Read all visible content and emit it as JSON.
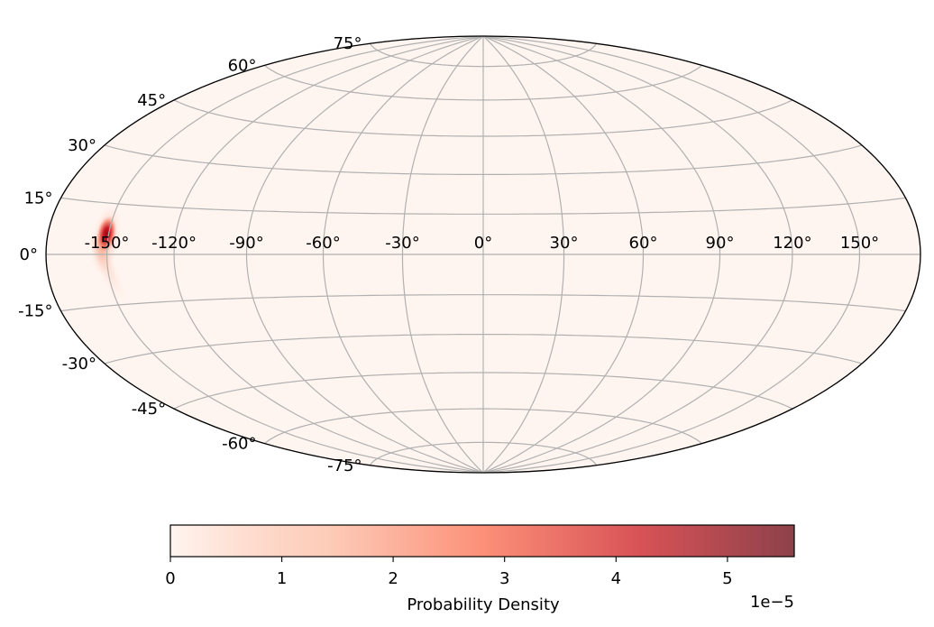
{
  "chart_data": {
    "type": "heatmap",
    "projection": "hammer",
    "title": "",
    "longitude_ticks": [
      "-150°",
      "-120°",
      "-90°",
      "-60°",
      "-30°",
      "0°",
      "30°",
      "60°",
      "90°",
      "120°",
      "150°"
    ],
    "latitude_ticks": [
      "75°",
      "60°",
      "45°",
      "30°",
      "15°",
      "0°",
      "-15°",
      "-30°",
      "-45°",
      "-60°",
      "-75°"
    ],
    "longitude_tick_values": [
      -150,
      -120,
      -90,
      -60,
      -30,
      0,
      30,
      60,
      90,
      120,
      150
    ],
    "latitude_tick_values": [
      75,
      60,
      45,
      30,
      15,
      0,
      -15,
      -30,
      -45,
      -60,
      -75
    ],
    "grid": true,
    "hotspot": {
      "lon_center": -151,
      "lat_center": 6,
      "peak_density": 5.6e-05,
      "tail_to": {
        "lon": -144,
        "lat": -15
      }
    },
    "colorbar": {
      "label": "Probability Density",
      "orientation": "horizontal",
      "placement": "bottom",
      "range": [
        0,
        5.6
      ],
      "ticks": [
        "0",
        "1",
        "2",
        "3",
        "4",
        "5"
      ],
      "tick_values": [
        0,
        1,
        2,
        3,
        4,
        5
      ],
      "offset_text": "1e−5",
      "colormap": "Reds",
      "colors": [
        "#fff5f0",
        "#fcbba1",
        "#fb6a4a",
        "#cb181d",
        "#67000d"
      ],
      "alpha": 0.7
    },
    "grid_color": "#b0b0b0"
  }
}
